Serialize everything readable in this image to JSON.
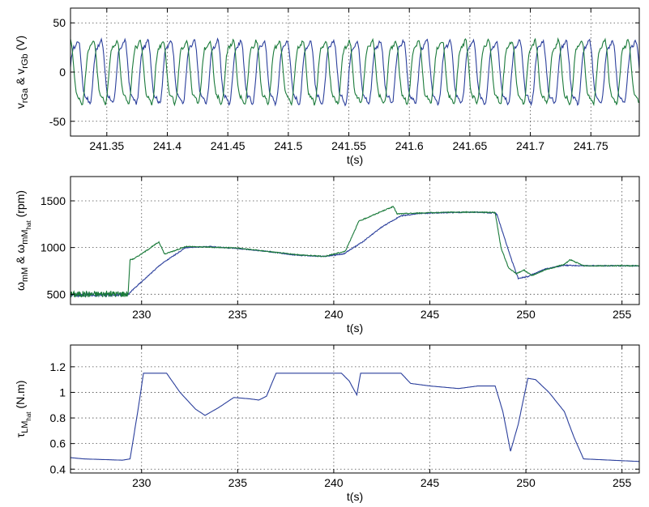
{
  "chart_data": [
    {
      "type": "line",
      "xlabel": "t(s)",
      "ylabel_parts": {
        "a": "v",
        "a_sub": "rGa",
        "amp": " & ",
        "b": "v",
        "b_sub": "rGb",
        "unit": "(V)"
      },
      "xlim": [
        241.32,
        241.79
      ],
      "ylim": [
        -65,
        65
      ],
      "xticks": [
        241.35,
        241.4,
        241.45,
        241.5,
        241.55,
        241.6,
        241.65,
        241.7,
        241.75
      ],
      "yticks": [
        -50,
        0,
        50
      ],
      "grid": true,
      "series": [
        {
          "color": "#2b3f9c",
          "signal": {
            "amp": 33,
            "period": 0.0192,
            "phase": 0.0,
            "noise": 4
          }
        },
        {
          "color": "#1a7a3a",
          "signal": {
            "amp": 33,
            "period": 0.0192,
            "phase": 2.094,
            "noise": 4
          }
        }
      ]
    },
    {
      "type": "line",
      "xlabel": "t(s)",
      "ylabel_parts": {
        "a": "ω",
        "a_sub": "mM",
        "amp": " & ",
        "b": "ω",
        "b_sub": "mM",
        "b_subsub": "hat",
        "unit": "(rpm)"
      },
      "xlim": [
        226.3,
        255.9
      ],
      "ylim": [
        390,
        1760
      ],
      "xticks": [
        230,
        235,
        240,
        245,
        250,
        255
      ],
      "yticks": [
        500,
        1000,
        1500
      ],
      "grid": true,
      "series": [
        {
          "color": "#2b3f9c",
          "x": [
            226.3,
            229.3,
            229.5,
            231,
            232.3,
            233.5,
            235,
            236.5,
            238,
            239.5,
            240.5,
            241.5,
            242.5,
            243.5,
            244.5,
            246,
            247.5,
            248.4,
            248.5,
            249.2,
            249.6,
            250.1,
            251,
            252,
            253,
            254,
            255.9
          ],
          "y": [
            490,
            495,
            540,
            820,
            1000,
            1010,
            990,
            960,
            920,
            905,
            930,
            1060,
            1220,
            1340,
            1365,
            1375,
            1378,
            1370,
            1350,
            900,
            670,
            690,
            770,
            810,
            805,
            805,
            805
          ]
        },
        {
          "color": "#1a7a3a",
          "x": [
            226.3,
            229.3,
            229.4,
            229.6,
            230.2,
            230.9,
            231.2,
            232.3,
            233.5,
            235,
            236.5,
            238,
            239.5,
            240.6,
            241.3,
            242.3,
            243.1,
            243.3,
            244.5,
            246,
            247.5,
            248.4,
            248.7,
            249.1,
            249.5,
            249.9,
            250.3,
            251,
            252,
            252.3,
            253,
            254,
            255.9
          ],
          "y": [
            500,
            505,
            870,
            880,
            960,
            1060,
            930,
            1010,
            1005,
            995,
            960,
            925,
            905,
            960,
            1280,
            1370,
            1440,
            1360,
            1370,
            1378,
            1380,
            1375,
            1000,
            780,
            720,
            760,
            700,
            760,
            820,
            870,
            805,
            805,
            805
          ]
        }
      ]
    },
    {
      "type": "line",
      "xlabel": "t(s)",
      "ylabel_parts": {
        "a": "τ",
        "a_sub": "LM",
        "a_subsub": "hat",
        "unit": "(N.m)"
      },
      "xlim": [
        226.3,
        255.9
      ],
      "ylim": [
        0.37,
        1.37
      ],
      "xticks": [
        230,
        235,
        240,
        245,
        250,
        255
      ],
      "yticks": [
        0.4,
        0.6,
        0.8,
        1,
        1.2
      ],
      "grid": true,
      "series": [
        {
          "color": "#2b3f9c",
          "x": [
            226.3,
            227,
            228,
            229,
            229.4,
            229.8,
            230.1,
            231.3,
            232,
            232.8,
            233.3,
            234,
            234.8,
            235.6,
            236.1,
            236.5,
            237,
            238,
            239.5,
            240.4,
            240.8,
            241.2,
            241.4,
            241.6,
            243.5,
            244,
            245,
            246.5,
            247.5,
            248.4,
            248.8,
            249.2,
            249.6,
            250.1,
            250.5,
            251.2,
            252,
            252.5,
            253,
            255.9
          ],
          "y": [
            0.49,
            0.48,
            0.475,
            0.47,
            0.48,
            0.85,
            1.15,
            1.15,
            1.0,
            0.87,
            0.82,
            0.88,
            0.96,
            0.95,
            0.94,
            0.97,
            1.15,
            1.15,
            1.15,
            1.15,
            1.09,
            0.98,
            1.15,
            1.15,
            1.15,
            1.07,
            1.05,
            1.03,
            1.05,
            1.05,
            0.85,
            0.54,
            0.75,
            1.11,
            1.1,
            1.0,
            0.85,
            0.65,
            0.48,
            0.46
          ]
        }
      ]
    }
  ]
}
